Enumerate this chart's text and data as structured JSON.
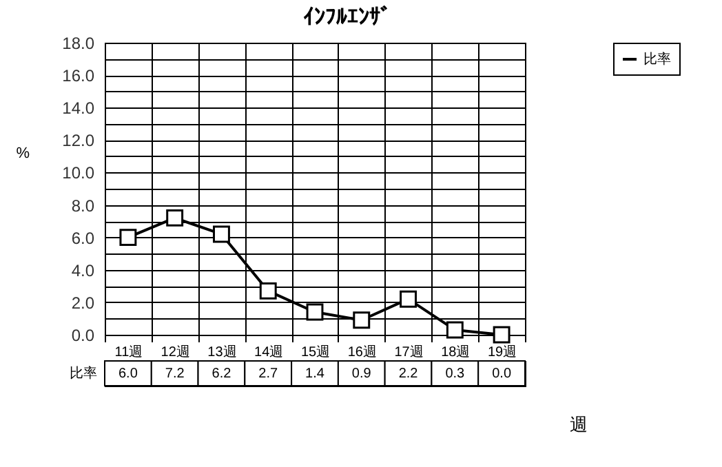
{
  "chart_data": {
    "type": "line",
    "title": "ｲﾝﾌﾙｴﾝｻﾞ",
    "xlabel": "週",
    "ylabel": "%",
    "categories": [
      "11週",
      "12週",
      "13週",
      "14週",
      "15週",
      "16週",
      "17週",
      "18週",
      "19週"
    ],
    "series": [
      {
        "name": "比率",
        "color": "#000000",
        "values": [
          6.0,
          7.2,
          6.2,
          2.7,
          1.4,
          0.9,
          2.2,
          0.3,
          0.0
        ],
        "value_labels": [
          "6.0",
          "7.2",
          "6.2",
          "2.7",
          "1.4",
          "0.9",
          "2.2",
          "0.3",
          "0.0"
        ]
      }
    ],
    "ylim": [
      0,
      18
    ],
    "yticks": [
      {
        "value": 0,
        "label": "0.0"
      },
      {
        "value": 1,
        "label": null
      },
      {
        "value": 2,
        "label": "2.0"
      },
      {
        "value": 3,
        "label": null
      },
      {
        "value": 4,
        "label": "4.0"
      },
      {
        "value": 5,
        "label": null
      },
      {
        "value": 6,
        "label": "6.0"
      },
      {
        "value": 7,
        "label": null
      },
      {
        "value": 8,
        "label": "8.0"
      },
      {
        "value": 9,
        "label": null
      },
      {
        "value": 10,
        "label": "10.0"
      },
      {
        "value": 11,
        "label": null
      },
      {
        "value": 12,
        "label": "12.0"
      },
      {
        "value": 13,
        "label": null
      },
      {
        "value": 14,
        "label": "14.0"
      },
      {
        "value": 15,
        "label": null
      },
      {
        "value": 16,
        "label": "16.0"
      },
      {
        "value": 17,
        "label": null
      },
      {
        "value": 18,
        "label": "18.0"
      }
    ],
    "grid": true,
    "legend": "top right",
    "marker": "square"
  }
}
